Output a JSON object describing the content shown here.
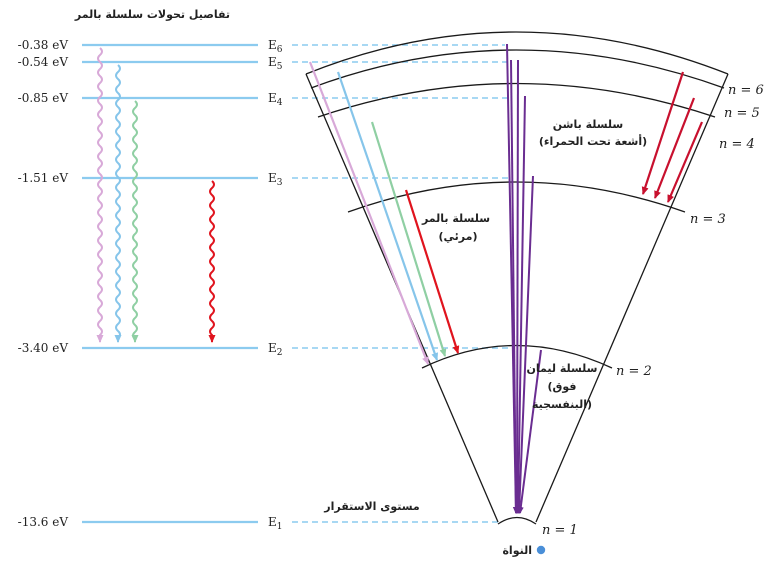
{
  "title": "تفاصيل تحولات سلسلة بالمر",
  "levels": [
    {
      "energy": "-0.38 eV",
      "label": "E",
      "sub": "6",
      "n": "n = 6"
    },
    {
      "energy": "-0.54 eV",
      "label": "E",
      "sub": "5",
      "n": "n = 5"
    },
    {
      "energy": "-0.85 eV",
      "label": "E",
      "sub": "4",
      "n": "n = 4"
    },
    {
      "energy": "-1.51 eV",
      "label": "E",
      "sub": "3",
      "n": "n = 3"
    },
    {
      "energy": "-3.40 eV",
      "label": "E",
      "sub": "2",
      "n": "n = 2"
    },
    {
      "energy": "-13.6 eV",
      "label": "E",
      "sub": "1",
      "n": "n = 1"
    }
  ],
  "series": {
    "paschen": {
      "line1": "سلسلة باشن",
      "line2": "(أشعة تحت الحمراء)"
    },
    "balmer": {
      "line1": "سلسلة بالمر",
      "line2": "(مرئي)"
    },
    "lyman": {
      "line1": "سلسلة ليمان",
      "line2": "(فوق",
      "line3": "البنفسجية)"
    }
  },
  "ground_state": "مستوى الاستقرار",
  "nucleus": "النواة",
  "colors": {
    "level_line": "#8ccbef",
    "transition_6_2": "#d8a9d8",
    "transition_5_2": "#86c5ea",
    "transition_4_2": "#8fcfa3",
    "transition_3_2": "#e0141e",
    "lyman": "#6a2d91",
    "paschen": "#c8102e",
    "nucleus": "#4a8fd8"
  }
}
